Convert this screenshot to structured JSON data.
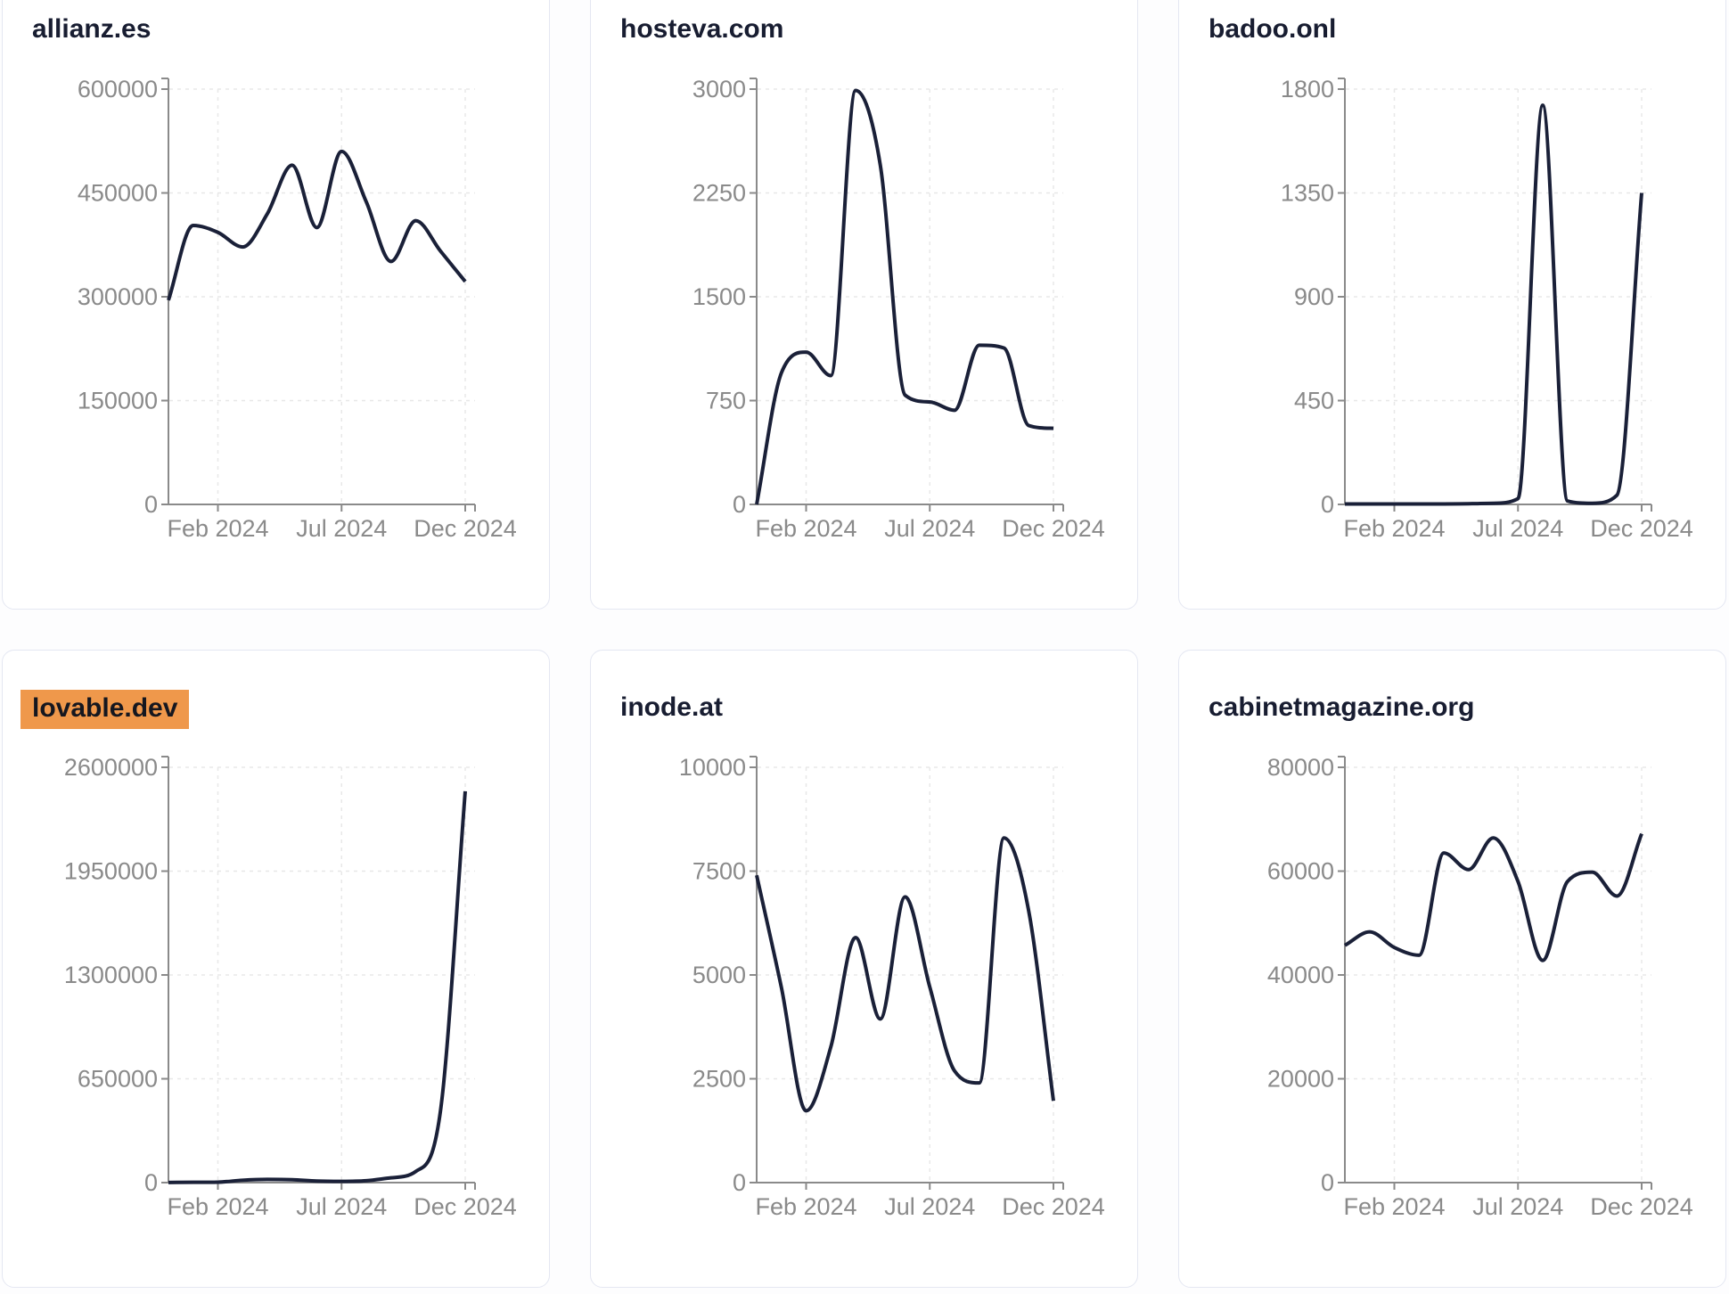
{
  "page": {
    "background": "#fdfdfe",
    "x_axis_tick_labels": [
      "Feb 2024",
      "Jul 2024",
      "Dec 2024"
    ],
    "x_axis_tick_month_index": [
      2,
      7,
      12
    ]
  },
  "theme": {
    "line_color": "#1a2038",
    "title_color": "#181d31",
    "tick_label_color": "#8a8a8a",
    "axis_color": "#8a8a8a",
    "grid_color": "#e8e8e8",
    "card_background": "#ffffff",
    "card_border": "#e4e7f2",
    "highlight_background": "#ef984b",
    "highlight_text": "#15171f"
  },
  "chart_data": [
    {
      "type": "line",
      "title": "allianz.es",
      "highlighted": false,
      "x_months": [
        "Dec 2023",
        "Jan 2024",
        "Feb 2024",
        "Mar 2024",
        "Apr 2024",
        "May 2024",
        "Jun 2024",
        "Jul 2024",
        "Aug 2024",
        "Sep 2024",
        "Oct 2024",
        "Nov 2024",
        "Dec 2024"
      ],
      "x_tick_labels": [
        "Feb 2024",
        "Jul 2024",
        "Dec 2024"
      ],
      "values": [
        295000,
        403000,
        393000,
        372000,
        420000,
        490000,
        400000,
        510000,
        437000,
        351000,
        410000,
        366000,
        322000
      ],
      "y_ticks": [
        0,
        150000,
        300000,
        450000,
        600000
      ],
      "ylim": [
        0,
        600000
      ],
      "grid": true,
      "legend": "none"
    },
    {
      "type": "line",
      "title": "hosteva.com",
      "highlighted": false,
      "x_months": [
        "Dec 2023",
        "Jan 2024",
        "Feb 2024",
        "Mar 2024",
        "Apr 2024",
        "May 2024",
        "Jun 2024",
        "Jul 2024",
        "Aug 2024",
        "Sep 2024",
        "Oct 2024",
        "Nov 2024",
        "Dec 2024"
      ],
      "x_tick_labels": [
        "Feb 2024",
        "Jul 2024",
        "Dec 2024"
      ],
      "values": [
        0,
        950,
        1100,
        930,
        2990,
        2450,
        790,
        740,
        680,
        1150,
        1130,
        570,
        550
      ],
      "y_ticks": [
        0,
        750,
        1500,
        2250,
        3000
      ],
      "ylim": [
        0,
        3000
      ],
      "grid": true,
      "legend": "none"
    },
    {
      "type": "line",
      "title": "badoo.onl",
      "highlighted": false,
      "x_months": [
        "Dec 2023",
        "Jan 2024",
        "Feb 2024",
        "Mar 2024",
        "Apr 2024",
        "May 2024",
        "Jun 2024",
        "Jul 2024",
        "Aug 2024",
        "Sep 2024",
        "Oct 2024",
        "Nov 2024",
        "Dec 2024"
      ],
      "x_tick_labels": [
        "Feb 2024",
        "Jul 2024",
        "Dec 2024"
      ],
      "values": [
        2,
        2,
        2,
        2,
        2,
        3,
        5,
        25,
        1730,
        15,
        5,
        40,
        1350
      ],
      "y_ticks": [
        0,
        450,
        900,
        1350,
        1800
      ],
      "ylim": [
        0,
        1800
      ],
      "grid": true,
      "legend": "none"
    },
    {
      "type": "line",
      "title": "lovable.dev",
      "highlighted": true,
      "x_months": [
        "Dec 2023",
        "Jan 2024",
        "Feb 2024",
        "Mar 2024",
        "Apr 2024",
        "May 2024",
        "Jun 2024",
        "Jul 2024",
        "Aug 2024",
        "Sep 2024",
        "Oct 2024",
        "Nov 2024",
        "Dec 2024"
      ],
      "x_tick_labels": [
        "Feb 2024",
        "Jul 2024",
        "Dec 2024"
      ],
      "values": [
        1000,
        2000,
        3000,
        15000,
        20000,
        18000,
        10000,
        8000,
        12000,
        30000,
        70000,
        450000,
        2450000
      ],
      "y_ticks": [
        0,
        650000,
        1300000,
        1950000,
        2600000
      ],
      "ylim": [
        0,
        2600000
      ],
      "grid": true,
      "legend": "none"
    },
    {
      "type": "line",
      "title": "inode.at",
      "highlighted": false,
      "x_months": [
        "Dec 2023",
        "Jan 2024",
        "Feb 2024",
        "Mar 2024",
        "Apr 2024",
        "May 2024",
        "Jun 2024",
        "Jul 2024",
        "Aug 2024",
        "Sep 2024",
        "Oct 2024",
        "Nov 2024",
        "Dec 2024"
      ],
      "x_tick_labels": [
        "Feb 2024",
        "Jul 2024",
        "Dec 2024"
      ],
      "values": [
        7400,
        4700,
        1730,
        3270,
        5900,
        3940,
        6880,
        4710,
        2690,
        2400,
        8300,
        6540,
        1970
      ],
      "y_ticks": [
        0,
        2500,
        5000,
        7500,
        10000
      ],
      "ylim": [
        0,
        10000
      ],
      "grid": true,
      "legend": "none"
    },
    {
      "type": "line",
      "title": "cabinetmagazine.org",
      "highlighted": false,
      "x_months": [
        "Dec 2023",
        "Jan 2024",
        "Feb 2024",
        "Mar 2024",
        "Apr 2024",
        "May 2024",
        "Jun 2024",
        "Jul 2024",
        "Aug 2024",
        "Sep 2024",
        "Oct 2024",
        "Nov 2024",
        "Dec 2024"
      ],
      "x_tick_labels": [
        "Feb 2024",
        "Jul 2024",
        "Dec 2024"
      ],
      "values": [
        45700,
        48300,
        45300,
        43800,
        63500,
        60300,
        66400,
        58000,
        42800,
        58000,
        59800,
        55200,
        67200
      ],
      "y_ticks": [
        0,
        20000,
        40000,
        60000,
        80000
      ],
      "ylim": [
        0,
        80000
      ],
      "grid": true,
      "legend": "none"
    }
  ]
}
